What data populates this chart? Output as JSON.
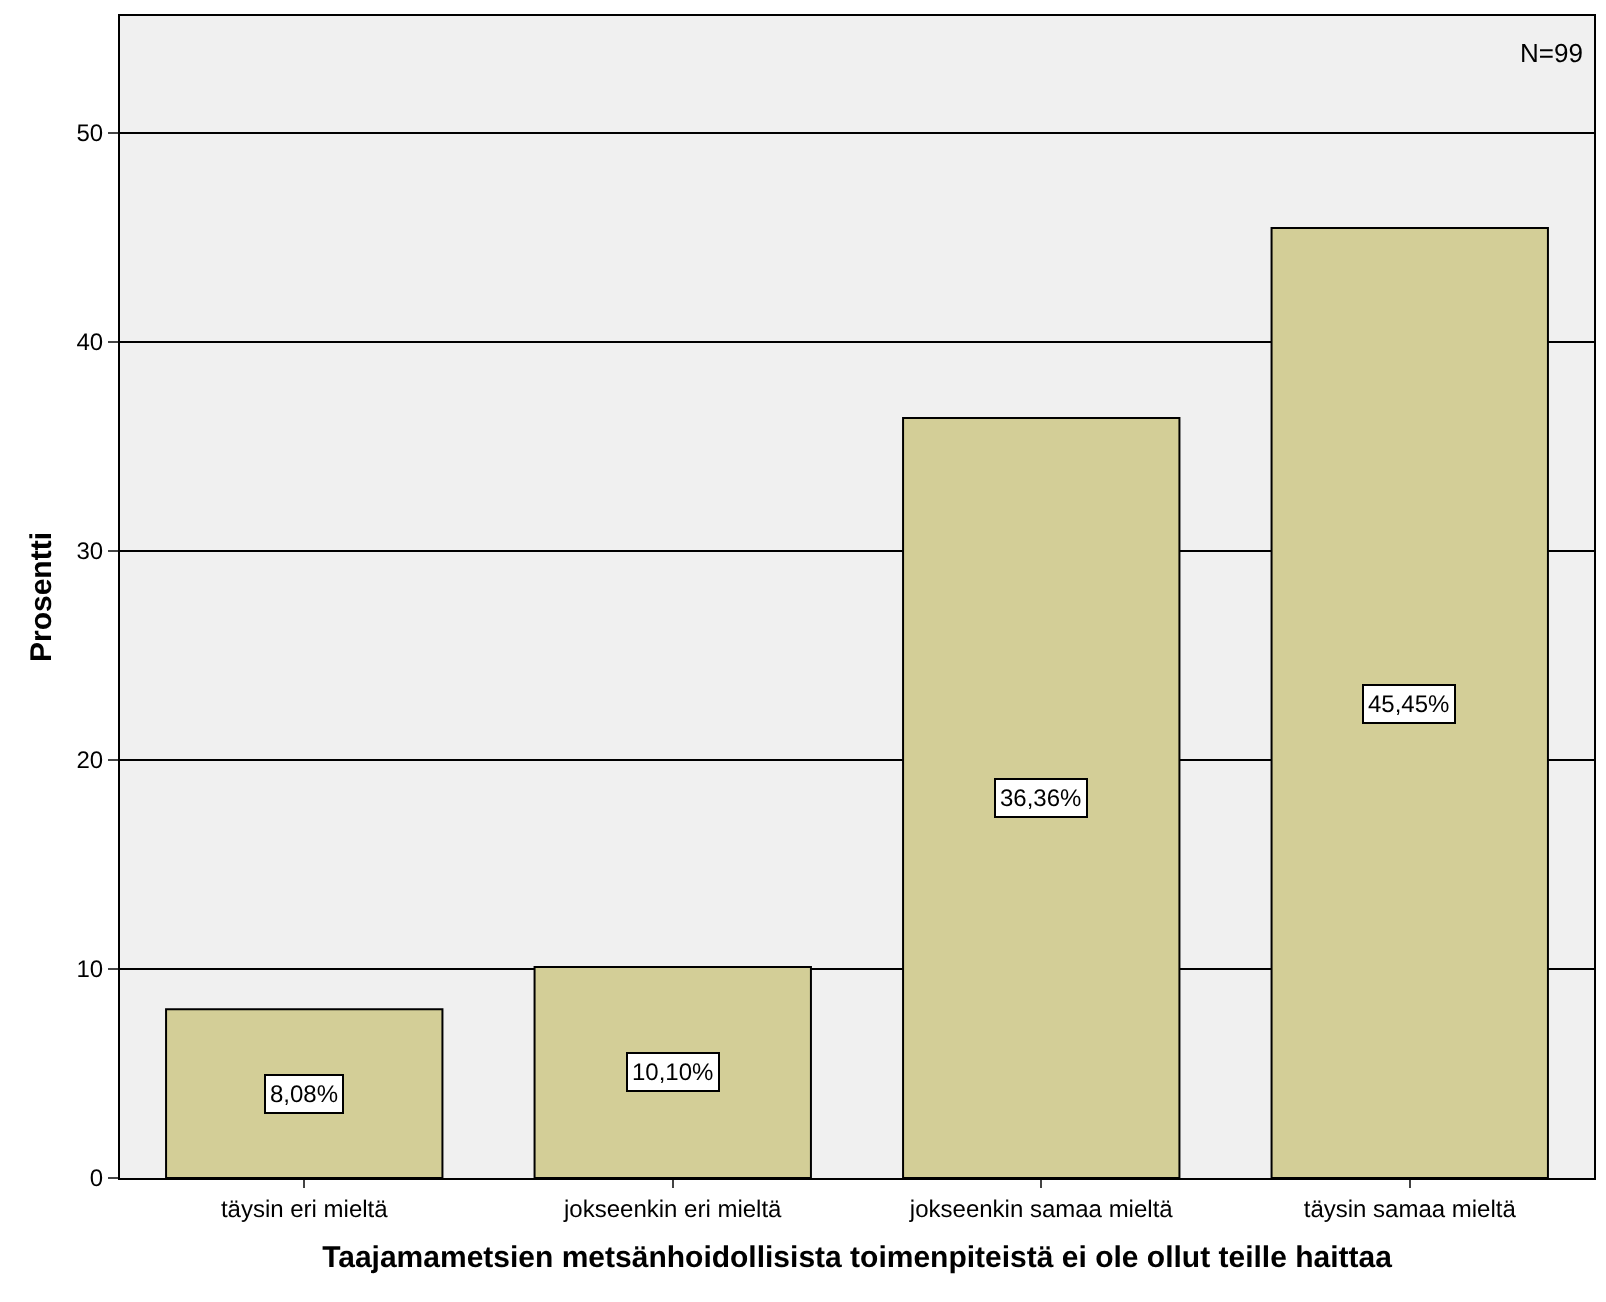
{
  "chart_data": {
    "type": "bar",
    "xlabel": "Taajamametsien metsänhoidollisista toimenpiteistä ei ole ollut teille haittaa",
    "ylabel": "Prosentti",
    "categories": [
      "täysin eri mieltä",
      "jokseenkin eri mieltä",
      "jokseenkin samaa mieltä",
      "täysin samaa mieltä"
    ],
    "values": [
      8.08,
      10.1,
      36.36,
      45.45
    ],
    "value_labels": [
      "8,08%",
      "10,10%",
      "36,36%",
      "45,45%"
    ],
    "color": "#d3ce97",
    "ylim": [
      0,
      55.6
    ],
    "yticks": [
      0,
      10,
      20,
      30,
      40,
      50
    ],
    "grid": "y",
    "annotations": [
      "N=99"
    ]
  }
}
